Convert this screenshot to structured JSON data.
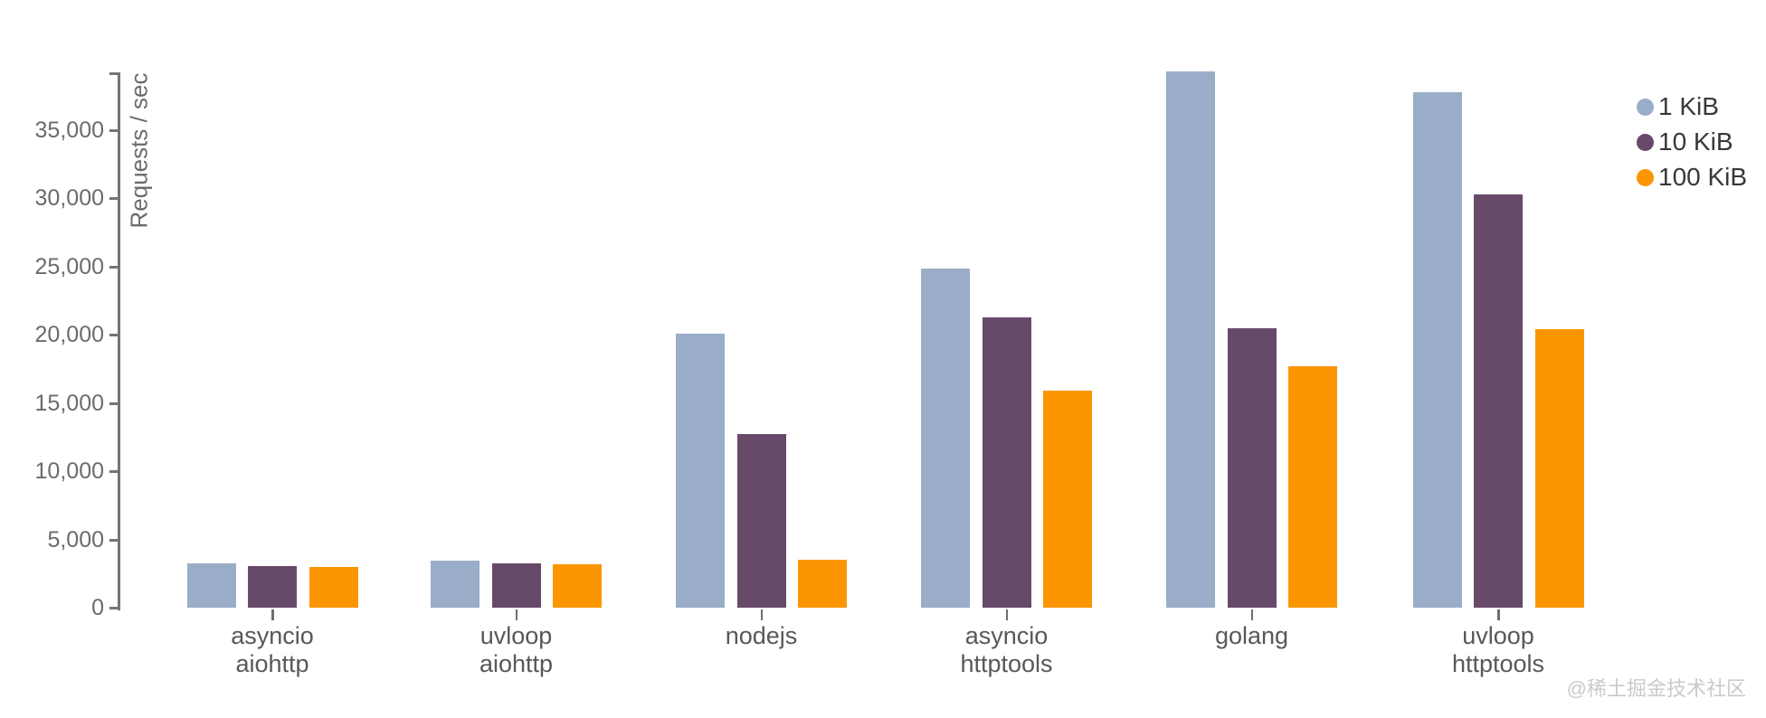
{
  "chart_data": {
    "type": "bar",
    "title": "",
    "xlabel": "",
    "ylabel": "Requests / sec",
    "categories": [
      "asyncio\naiohttp",
      "uvloop\naiohttp",
      "nodejs",
      "asyncio\nhttptools",
      "golang",
      "uvloop\nhttptools"
    ],
    "series": [
      {
        "name": "1 KiB",
        "color": "#9aadc8",
        "values": [
          3250,
          3450,
          20050,
          24850,
          39300,
          37750
        ]
      },
      {
        "name": "10 KiB",
        "color": "#674a69",
        "values": [
          3050,
          3270,
          12700,
          21270,
          20500,
          30300
        ]
      },
      {
        "name": "100 KiB",
        "color": "#fb9602",
        "values": [
          2950,
          3180,
          3500,
          15900,
          17680,
          20430
        ]
      }
    ],
    "y_ticks": [
      0,
      5000,
      10000,
      15000,
      20000,
      25000,
      30000,
      35000
    ],
    "ylim": [
      0,
      40000
    ],
    "grid": false,
    "legend_position": "top-right"
  },
  "watermark": "@稀土掘金技术社区",
  "colors": {
    "axis": "#757575",
    "tick_label": "#6b6b6b",
    "group_label": "#58585a",
    "legend_text": "#383838",
    "watermark": "#cacaca",
    "background": "#ffffff"
  }
}
